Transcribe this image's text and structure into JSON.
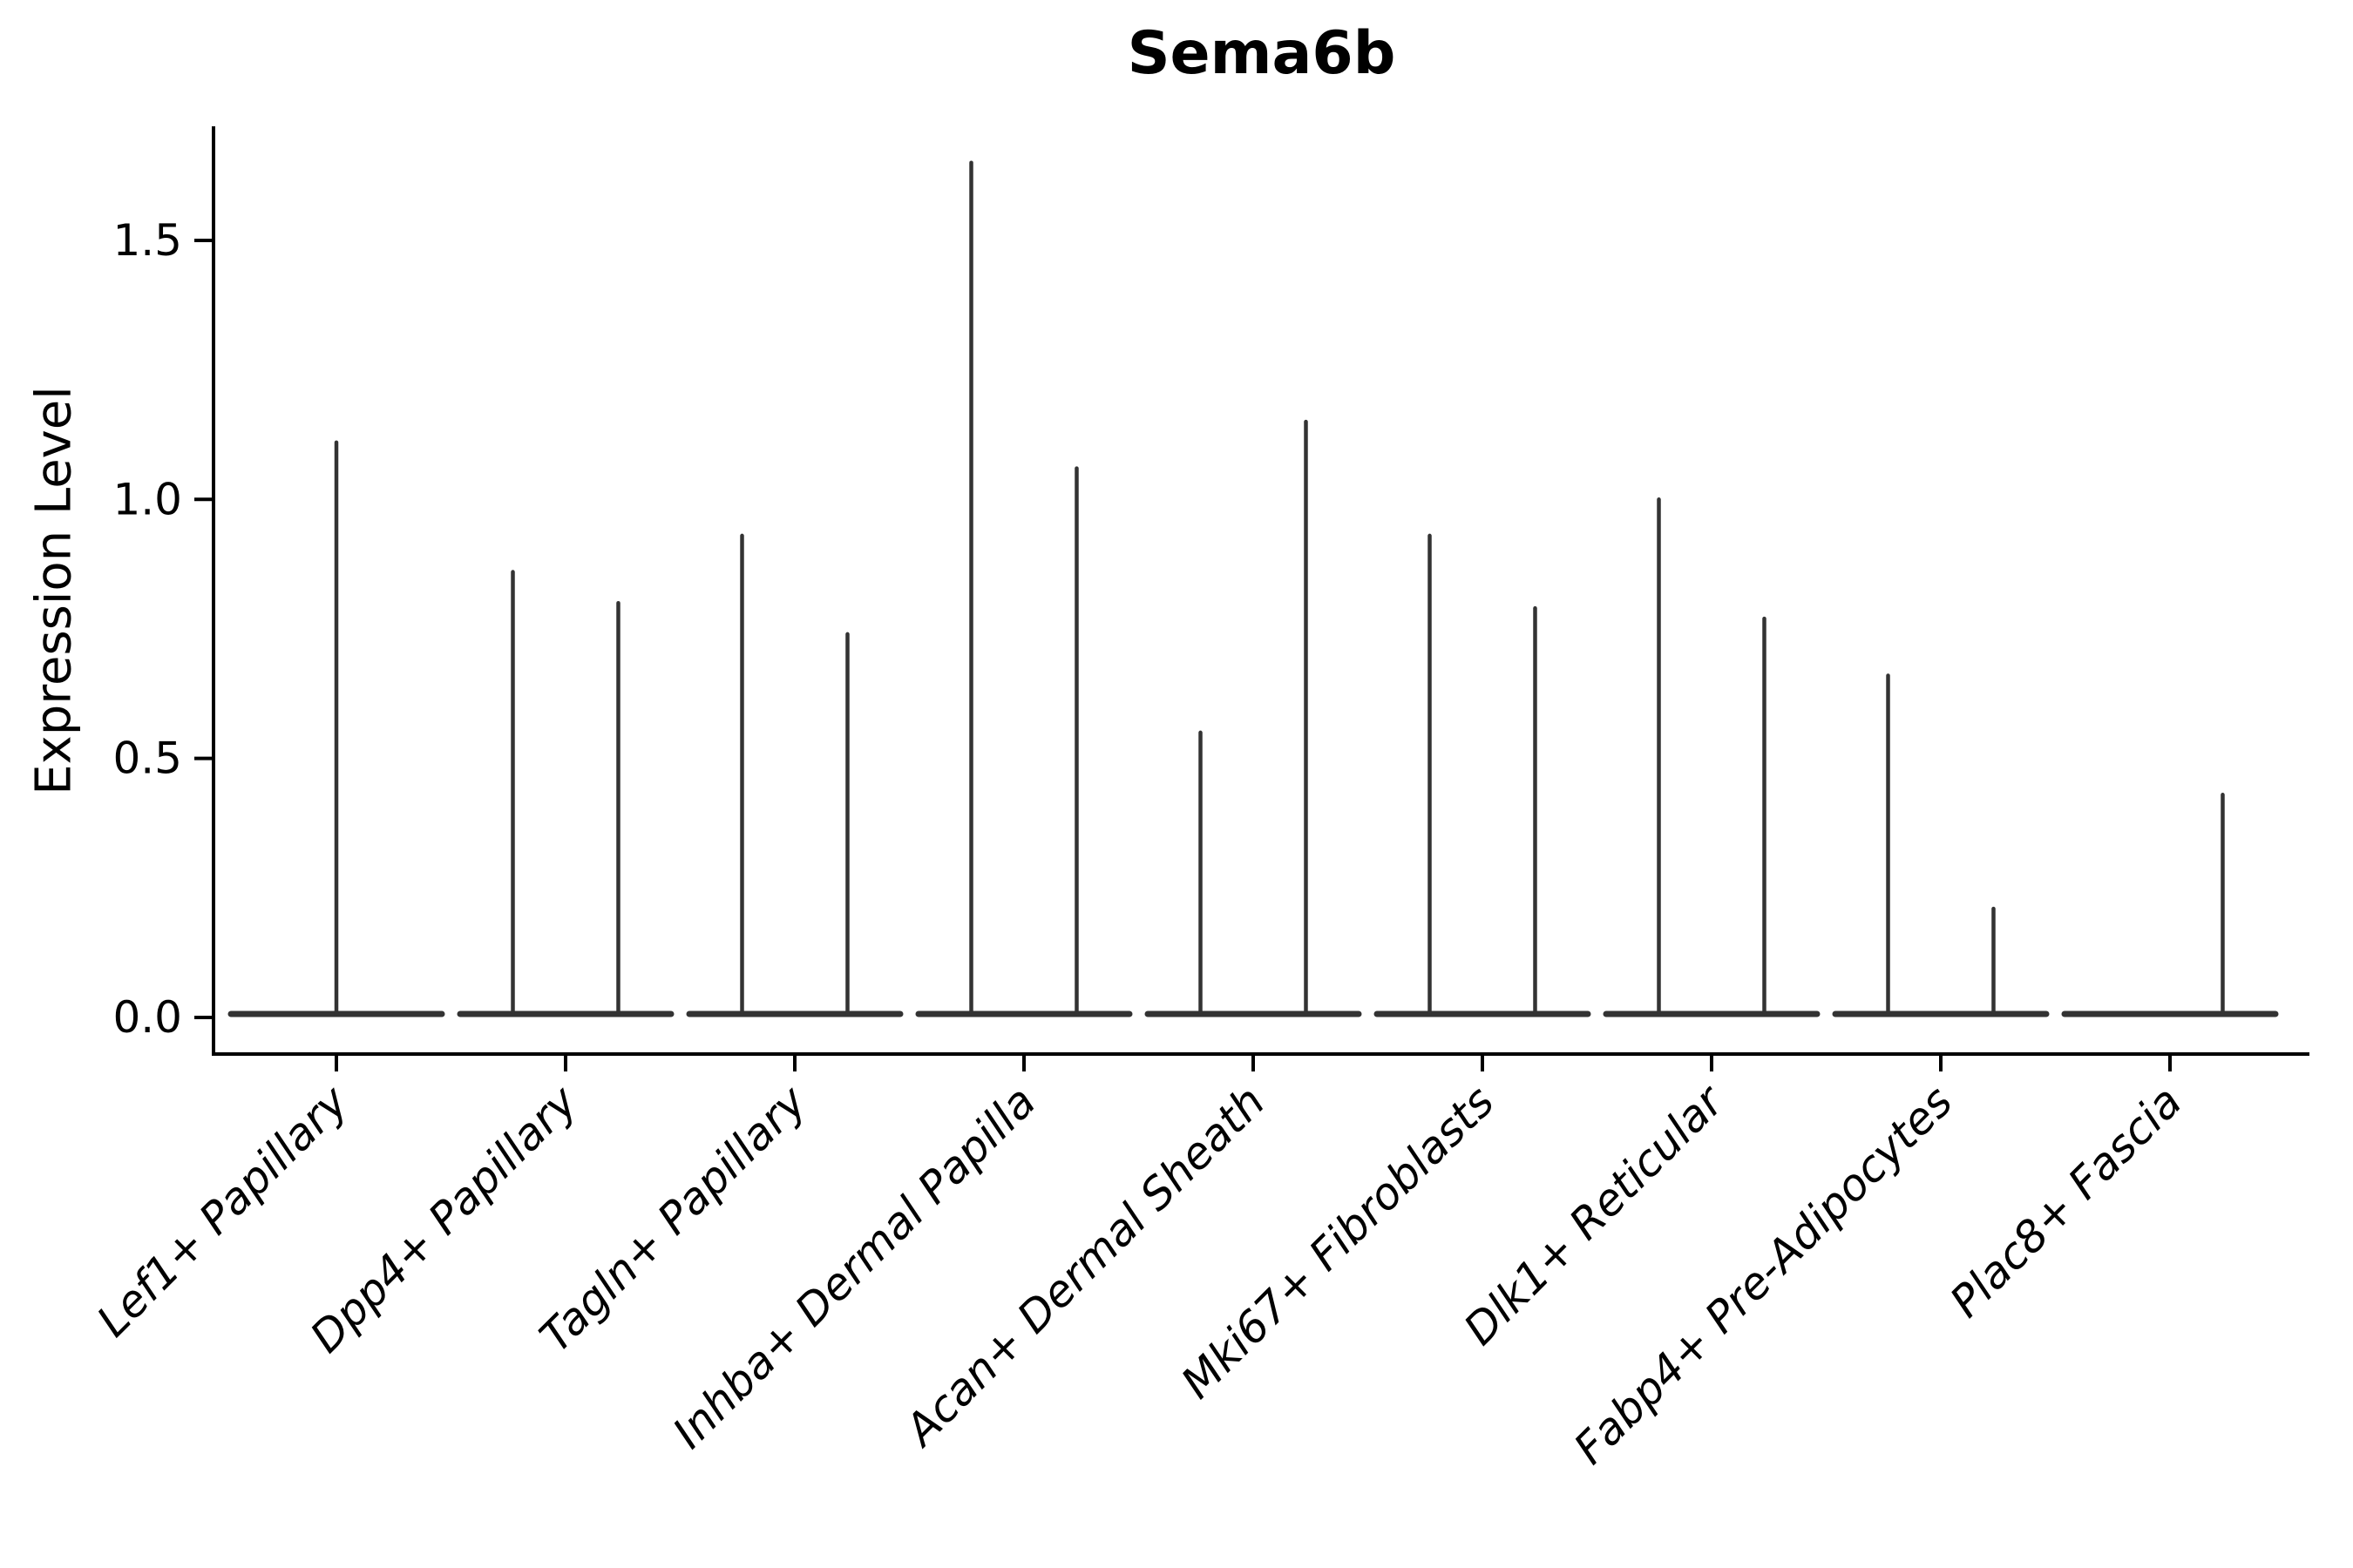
{
  "figure": {
    "title": "Sema6b",
    "y_axis_label": "Expression Level"
  },
  "chart_data": {
    "type": "violin",
    "title": "Sema6b",
    "xlabel": "",
    "ylabel": "Expression Level",
    "ylim": [
      -0.07,
      1.72
    ],
    "yticks": [
      0.0,
      0.5,
      1.0,
      1.5
    ],
    "ytick_labels": [
      "0.0",
      "0.5",
      "1.0",
      "1.5"
    ],
    "grid": false,
    "legend": false,
    "x_tick_rotation": 45,
    "violin_style": "needle-spike-with-flat-base-at-zero",
    "categories": [
      "Lef1+ Papillary",
      "Dpp4+ Papillary",
      "Tagln+ Papillary",
      "Inhba+ Dermal Papilla",
      "Acan+ Dermal Sheath",
      "Mki67+ Fibroblasts",
      "Dlk1+ Reticular",
      "Fabp4+ Pre-Adipocytes",
      "Plac8+ Fascia"
    ],
    "series": [
      {
        "category": "Lef1+ Papillary",
        "violins": [
          {
            "position": 0.0,
            "max_expression": 1.11
          }
        ]
      },
      {
        "category": "Dpp4+ Papillary",
        "violins": [
          {
            "position": -0.23,
            "max_expression": 0.86
          },
          {
            "position": 0.23,
            "max_expression": 0.8
          }
        ]
      },
      {
        "category": "Tagln+ Papillary",
        "violins": [
          {
            "position": -0.23,
            "max_expression": 0.93
          },
          {
            "position": 0.23,
            "max_expression": 0.74
          }
        ]
      },
      {
        "category": "Inhba+ Dermal Papilla",
        "violins": [
          {
            "position": -0.23,
            "max_expression": 1.65
          },
          {
            "position": 0.23,
            "max_expression": 1.06
          }
        ]
      },
      {
        "category": "Acan+ Dermal Sheath",
        "violins": [
          {
            "position": -0.23,
            "max_expression": 0.55
          },
          {
            "position": 0.23,
            "max_expression": 1.15
          }
        ]
      },
      {
        "category": "Mki67+ Fibroblasts",
        "violins": [
          {
            "position": -0.23,
            "max_expression": 0.93
          },
          {
            "position": 0.23,
            "max_expression": 0.79
          }
        ]
      },
      {
        "category": "Dlk1+ Reticular",
        "violins": [
          {
            "position": -0.23,
            "max_expression": 1.0
          },
          {
            "position": 0.23,
            "max_expression": 0.77
          }
        ]
      },
      {
        "category": "Fabp4+ Pre-Adipocytes",
        "violins": [
          {
            "position": -0.23,
            "max_expression": 0.66
          },
          {
            "position": 0.23,
            "max_expression": 0.21
          }
        ]
      },
      {
        "category": "Plac8+ Fascia",
        "violins": [
          {
            "position": 0.23,
            "max_expression": 0.43
          }
        ]
      }
    ],
    "colors": {
      "violin": "#333333",
      "axis": "#000000",
      "text": "#000000",
      "background": "#ffffff"
    }
  }
}
